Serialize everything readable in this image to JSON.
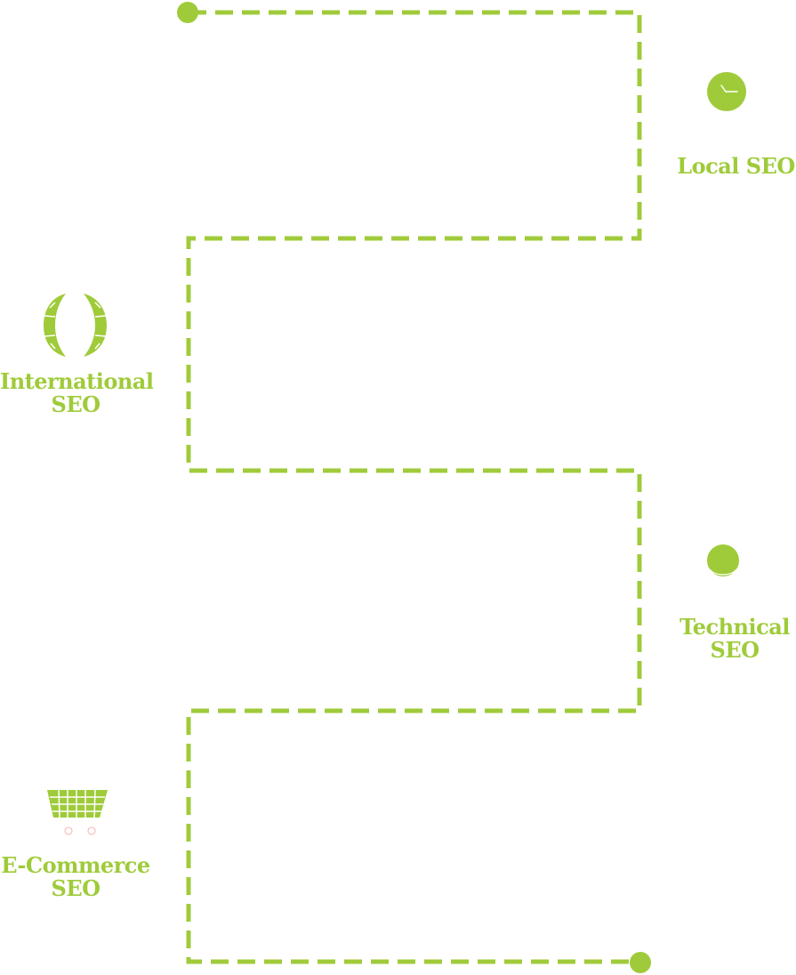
{
  "colors": {
    "accent": "#9fcb3a",
    "background": "#ffffff"
  },
  "services": [
    {
      "icon": "clock-icon",
      "label": "Local SEO",
      "label_lines": [
        "Local SEO"
      ]
    },
    {
      "icon": "globe-icon",
      "label": "International SEO",
      "label_lines": [
        "International",
        "SEO"
      ]
    },
    {
      "icon": "gear-icon",
      "label": "Technical SEO",
      "label_lines": [
        "Technical",
        "SEO"
      ]
    },
    {
      "icon": "shopping-cart-icon",
      "label": "E-Commerce SEO",
      "label_lines": [
        "E-Commerce",
        "SEO"
      ]
    }
  ]
}
